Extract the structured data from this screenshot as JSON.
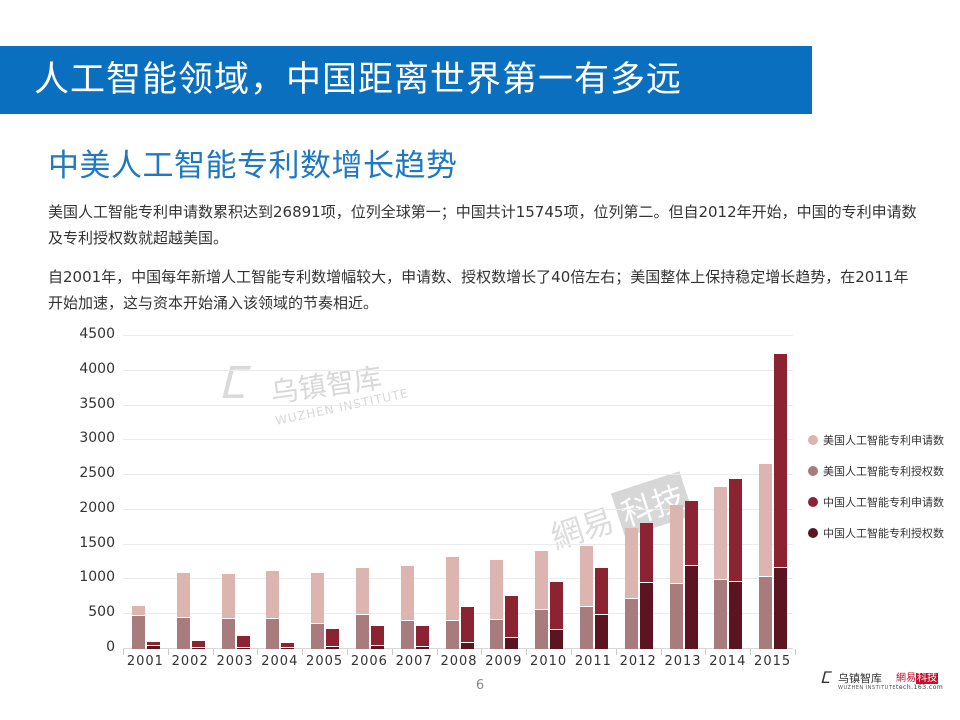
{
  "header": {
    "title": "人工智能领域，中国距离世界第一有多远",
    "banner_color": "#0a6fbf"
  },
  "section": {
    "subtitle": "中美人工智能专利数增长趋势",
    "paragraph1": "美国人工智能专利申请数累积达到26891项，位列全球第一；中国共计15745项，位列第二。但自2012年开始，中国的专利申请数及专利授权数就超越美国。",
    "paragraph2": "自2001年，中国每年新增人工智能专利数增幅较大，申请数、授权数增长了40倍左右；美国整体上保持稳定增长趋势，在2011年开始加速，这与资本开始涌入该领域的节奏相近。"
  },
  "watermarks": {
    "wuzhen_cn": "乌镇智库",
    "wuzhen_en": "WUZHEN  INSTITUTE",
    "netease_a": "網易",
    "netease_b": "科技"
  },
  "footer": {
    "page_number": "6",
    "logo1_cn": "乌镇智库",
    "logo1_en": "WUZHEN  INSTITUTE",
    "logo2_a": "網易",
    "logo2_b": "科技",
    "logo2_url": "tech.163.com"
  },
  "chart_data": {
    "type": "bar",
    "title": "中美人工智能专利数增长趋势",
    "xlabel": "",
    "ylabel": "",
    "ylim": [
      0,
      4500
    ],
    "yticks": [
      0,
      500,
      1000,
      1500,
      2000,
      2500,
      3000,
      3500,
      4000,
      4500
    ],
    "grid": true,
    "legend_position": "right",
    "layout_note": "Two overlapping bar pairs per year: left bar = US (grant drawn over application), right bar = China (grant drawn over application)",
    "categories": [
      "2001",
      "2002",
      "2003",
      "2004",
      "2005",
      "2006",
      "2007",
      "2008",
      "2009",
      "2010",
      "2011",
      "2012",
      "2013",
      "2014",
      "2015"
    ],
    "series": [
      {
        "name": "美国人工智能专利申请数",
        "color": "#dcb4b0",
        "values": [
          610,
          1075,
          1065,
          1100,
          1080,
          1150,
          1180,
          1310,
          1260,
          1390,
          1460,
          1720,
          2050,
          2310,
          2650
        ]
      },
      {
        "name": "美国人工智能专利授权数",
        "color": "#a87b7d",
        "values": [
          470,
          445,
          435,
          435,
          360,
          490,
          400,
          400,
          420,
          560,
          600,
          720,
          940,
          990,
          1030
        ]
      },
      {
        "name": "中国人工智能专利申请数",
        "color": "#8b2332",
        "values": [
          90,
          95,
          170,
          65,
          270,
          315,
          320,
          590,
          750,
          950,
          1150,
          1800,
          2110,
          2430,
          4220
        ]
      },
      {
        "name": "中国人工智能专利授权数",
        "color": "#5c1520",
        "values": [
          40,
          15,
          20,
          10,
          30,
          40,
          30,
          90,
          160,
          280,
          490,
          950,
          1190,
          960,
          1160
        ]
      }
    ]
  }
}
